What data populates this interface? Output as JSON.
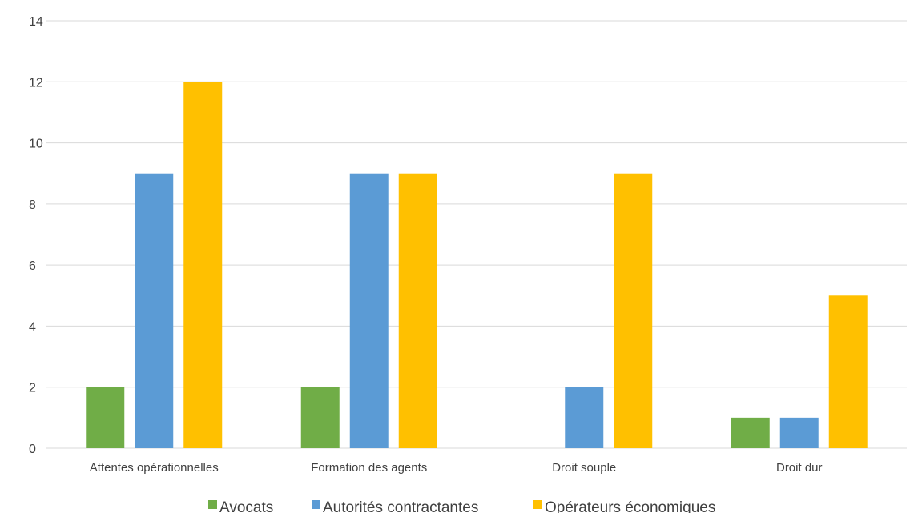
{
  "chart_data": {
    "type": "bar",
    "categories": [
      "Attentes opérationnelles",
      "Formation des agents",
      "Droit souple",
      "Droit dur"
    ],
    "series": [
      {
        "name": "Avocats",
        "values": [
          2,
          2,
          0,
          1
        ],
        "color": "#70ad47"
      },
      {
        "name": "Autorités contractantes",
        "values": [
          9,
          9,
          2,
          1
        ],
        "color": "#5b9bd5"
      },
      {
        "name": "Opérateurs économiques",
        "values": [
          12,
          9,
          9,
          5
        ],
        "color": "#ffc000"
      }
    ],
    "yticks": [
      "0",
      "2",
      "4",
      "6",
      "8",
      "10",
      "12",
      "14"
    ],
    "ylim": [
      0,
      14
    ],
    "grid": true,
    "legend_position": "bottom"
  }
}
